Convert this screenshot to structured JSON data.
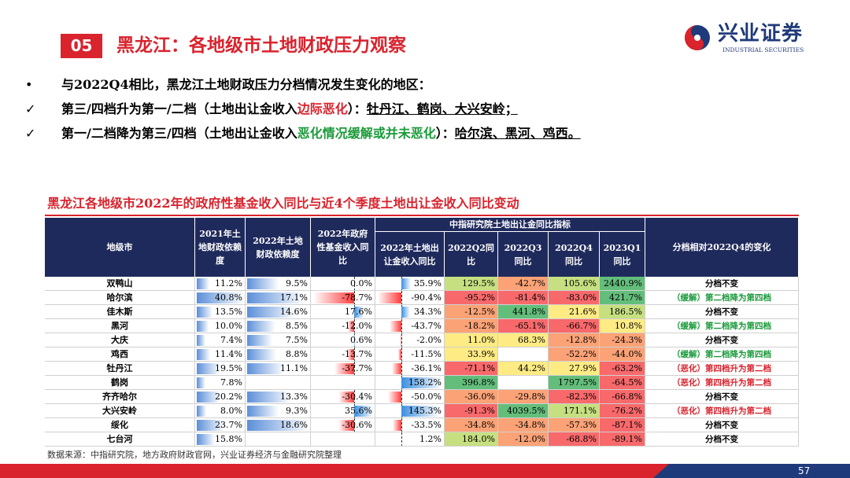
{
  "header": {
    "badge": "05",
    "title": "黑龙江：各地级市土地财政压力观察",
    "logo": "兴业证券",
    "logo_en": "INDUSTRIAL SECURITIES"
  },
  "bullets": [
    {
      "marker": "•",
      "parts": [
        {
          "text": "与2022Q4相比，黑龙江土地财政压力分档情况发生变化的地区："
        }
      ]
    },
    {
      "marker": "✓",
      "parts": [
        {
          "text": "第三/四档升为第一/二档（土地出让金收入"
        },
        {
          "text": "边际恶化",
          "color": "#d9232d"
        },
        {
          "text": "）："
        },
        {
          "text": "牡丹江、鹤岗、大兴安岭；",
          "underline": true
        }
      ]
    },
    {
      "marker": "✓",
      "parts": [
        {
          "text": "第一/二档降为第三/四档（土地出让金收入"
        },
        {
          "text": "恶化情况缓解或并未恶化",
          "color": "#1a9a3a"
        },
        {
          "text": "）："
        },
        {
          "text": "哈尔滨、黑河、鸡西。",
          "underline": true
        }
      ]
    }
  ],
  "table": {
    "title": "黑龙江各地级市2022年的政府性基金收入同比与近4个季度土地出让金收入同比变动",
    "group_header": "中指研究院土地出让金同比指标",
    "headers": [
      "地级市",
      "2021年土地财政依赖度",
      "2022年土地财政依赖度",
      "2022年政府性基金收入同比",
      "2022年土地出让金收入同比",
      "2022Q2同比",
      "2022Q3同比",
      "2022Q4同比",
      "2023Q1同比",
      "分档相对2022Q4的变化"
    ],
    "rows": [
      [
        "双鸭山",
        "11.2%",
        "9.5%",
        "0.0%",
        "35.9%",
        "129.5%",
        "-42.7%",
        "105.6%",
        "2440.9%",
        "分档不变"
      ],
      [
        "哈尔滨",
        "40.8%",
        "17.1%",
        "-78.7%",
        "-90.4%",
        "-95.2%",
        "-81.4%",
        "-83.0%",
        "421.7%",
        "（缓解）第二档降为第四档"
      ],
      [
        "佳木斯",
        "13.5%",
        "14.6%",
        "17.6%",
        "34.3%",
        "-12.5%",
        "441.8%",
        "21.6%",
        "186.5%",
        "分档不变"
      ],
      [
        "黑河",
        "10.0%",
        "8.5%",
        "-12.0%",
        "-43.7%",
        "-18.2%",
        "-65.1%",
        "-66.7%",
        "10.8%",
        "（缓解）第二档降为第四档"
      ],
      [
        "大庆",
        "7.4%",
        "7.5%",
        "0.6%",
        "-2.0%",
        "11.0%",
        "68.3%",
        "-12.8%",
        "-24.3%",
        "分档不变"
      ],
      [
        "鸡西",
        "11.4%",
        "8.8%",
        "-13.7%",
        "-11.5%",
        "33.9%",
        null,
        "-52.2%",
        "-44.0%",
        "（缓解）第二档降为第四档"
      ],
      [
        "牡丹江",
        "19.5%",
        "11.1%",
        "-37.7%",
        "-36.1%",
        "-71.1%",
        "44.2%",
        "27.9%",
        "-63.2%",
        "（恶化）第四档升为第二档"
      ],
      [
        "鹤岗",
        "7.8%",
        null,
        null,
        "158.2%",
        "396.8%",
        null,
        "1797.5%",
        "-64.5%",
        "（恶化）第四档升为第二档"
      ],
      [
        "齐齐哈尔",
        "20.2%",
        "13.3%",
        "-30.4%",
        "-50.0%",
        "-36.0%",
        "-29.8%",
        "-82.3%",
        "-66.8%",
        "分档不变"
      ],
      [
        "大兴安岭",
        "8.0%",
        "9.3%",
        "35.6%",
        "145.3%",
        "-91.3%",
        "4039.5%",
        "171.1%",
        "-76.2%",
        "（恶化）第四档升为第二档"
      ],
      [
        "绥化",
        "23.7%",
        "18.6%",
        "-30.6%",
        "-33.5%",
        "-34.8%",
        "-34.8%",
        "-57.3%",
        "-87.1%",
        "分档不变"
      ],
      [
        "七台河",
        "15.8%",
        null,
        null,
        "1.2%",
        "184.0%",
        "-12.0%",
        "-68.8%",
        "-89.1%",
        "分档不变"
      ]
    ],
    "change_colors": [
      "#000",
      "#1a9a3a",
      "#000",
      "#1a9a3a",
      "#000",
      "#1a9a3a",
      "#d9232d",
      "#d9232d",
      "#000",
      "#d9232d",
      "#000",
      "#000"
    ]
  },
  "source": "数据来源：中指研究院，地方政府财政官网，兴业证券经济与金融研究院整理",
  "page_number": "57"
}
